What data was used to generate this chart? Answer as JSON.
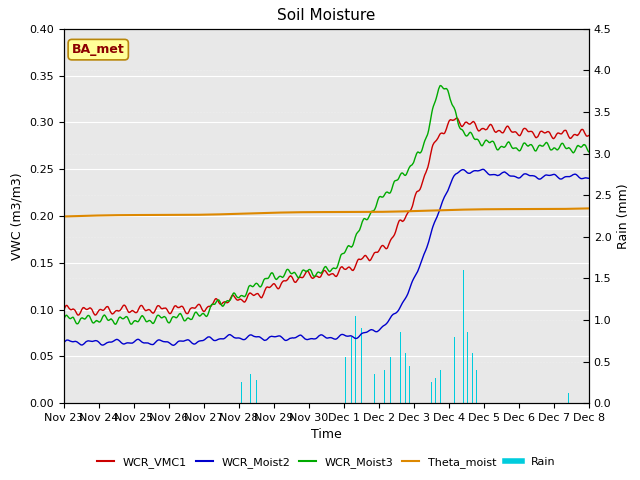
{
  "title": "Soil Moisture",
  "xlabel": "Time",
  "ylabel_left": "VWC (m3/m3)",
  "ylabel_right": "Rain (mm)",
  "ylim_left": [
    0.0,
    0.4
  ],
  "ylim_right": [
    0.0,
    4.5
  ],
  "yticks_left": [
    0.0,
    0.05,
    0.1,
    0.15,
    0.2,
    0.25,
    0.3,
    0.35,
    0.4
  ],
  "yticks_right": [
    0.0,
    0.5,
    1.0,
    1.5,
    2.0,
    2.5,
    3.0,
    3.5,
    4.0,
    4.5
  ],
  "xtick_labels": [
    "Nov 23",
    "Nov 24",
    "Nov 25",
    "Nov 26",
    "Nov 27",
    "Nov 28",
    "Nov 29",
    "Nov 30",
    "Dec 1",
    "Dec 2",
    "Dec 3",
    "Dec 4",
    "Dec 5",
    "Dec 6",
    "Dec 7",
    "Dec 8"
  ],
  "background_color": "#ffffff",
  "plot_bg_color": "#e8e8e8",
  "annotation_box": {
    "text": "BA_met",
    "text_color": "#8b0000",
    "bg_color": "#ffff99",
    "edge_color": "#b8860b"
  },
  "line_colors": {
    "WCR_VMC1": "#cc0000",
    "WCR_Moist2": "#0000cc",
    "WCR_Moist3": "#00aa00",
    "Theta_moist": "#dd8800",
    "Rain": "#00ccdd"
  }
}
